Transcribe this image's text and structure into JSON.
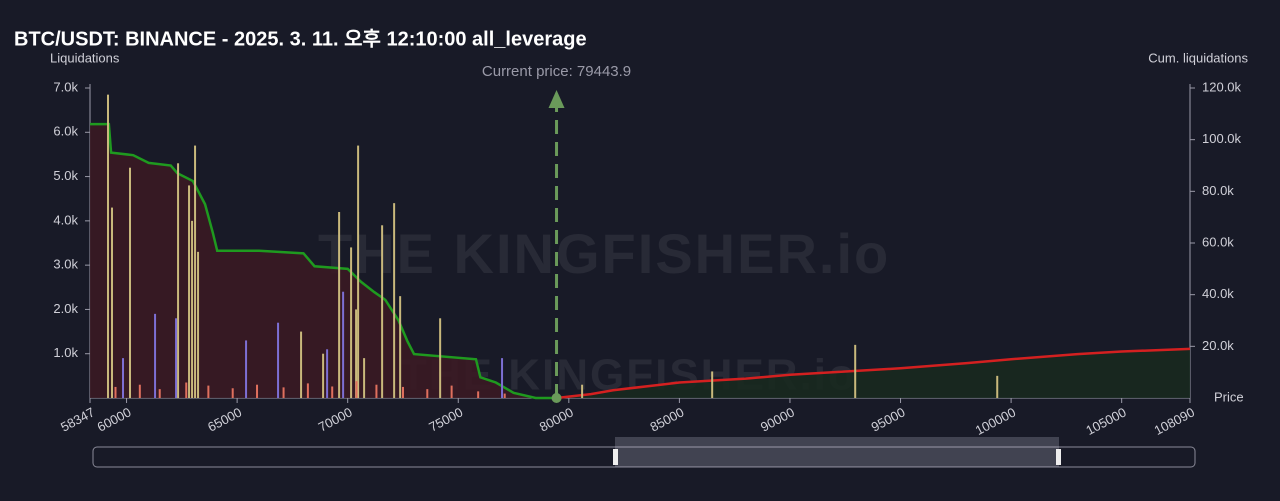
{
  "chart_data": {
    "type": "bar",
    "title": "BTC/USDT: BINANCE - 2025. 3. 11. 오후 12:10:00 all_leverage",
    "y_label": "Liquidations",
    "y2_label": "Cum. liquidations",
    "x_label": "Price",
    "watermark": "THE KINGFISHER.io",
    "annotation": {
      "text": "Current price: 79443.9",
      "x": 79443.9,
      "color": "#6a9a5a"
    },
    "xlim": [
      58347,
      108090
    ],
    "xticks": [
      58347,
      60000,
      65000,
      70000,
      75000,
      80000,
      85000,
      90000,
      95000,
      100000,
      105000,
      108090
    ],
    "ylim": [
      0,
      7000
    ],
    "yticks": [
      {
        "value": 1000,
        "label": "1.0k"
      },
      {
        "value": 2000,
        "label": "2.0k"
      },
      {
        "value": 3000,
        "label": "3.0k"
      },
      {
        "value": 4000,
        "label": "4.0k"
      },
      {
        "value": 5000,
        "label": "5.0k"
      },
      {
        "value": 6000,
        "label": "6.0k"
      },
      {
        "value": 7000,
        "label": "7.0k"
      }
    ],
    "y2lim": [
      0,
      120000
    ],
    "y2ticks": [
      {
        "value": 20000,
        "label": "20.0k"
      },
      {
        "value": 40000,
        "label": "40.0k"
      },
      {
        "value": 60000,
        "label": "60.0k"
      },
      {
        "value": 80000,
        "label": "80.0k"
      },
      {
        "value": 100000,
        "label": "100.0k"
      },
      {
        "value": 120000,
        "label": "120.0k"
      }
    ],
    "grid": false,
    "series": [
      {
        "type": "line",
        "axis": "y2",
        "color": "#1f9a1f",
        "fill": "#3a1a24",
        "x": [
          58347,
          59200,
          59300,
          60300,
          61000,
          62000,
          62300,
          63000,
          63550,
          63900,
          64100,
          66000,
          68000,
          68500,
          70000,
          70600,
          71200,
          71700,
          72300,
          72700,
          73000,
          75800,
          76000,
          76700,
          77500,
          78500,
          79443.9
        ],
        "values": [
          106000,
          106000,
          95000,
          94000,
          91000,
          90000,
          87000,
          84000,
          75000,
          64000,
          57000,
          57000,
          56000,
          51000,
          50000,
          45000,
          41000,
          38000,
          30000,
          22000,
          17000,
          15000,
          8000,
          6000,
          2000,
          0,
          0
        ]
      },
      {
        "type": "line",
        "axis": "y2",
        "color": "#d42020",
        "fill": "#18291f",
        "x": [
          79443.9,
          81000,
          82000,
          84000,
          85000,
          88000,
          90000,
          93000,
          95000,
          98000,
          100000,
          103000,
          105000,
          108090
        ],
        "values": [
          0,
          1500,
          3000,
          5000,
          6000,
          7500,
          9000,
          10500,
          11500,
          13500,
          15000,
          17000,
          18000,
          19000
        ]
      },
      {
        "color": "#c9b97c",
        "x": [
          59161,
          59342,
          60156,
          62329,
          62826,
          62962,
          63098,
          63233,
          67892,
          68888,
          69612,
          70154,
          70380,
          70471,
          70742,
          71557,
          72100,
          72372,
          74181,
          80601,
          86482,
          92950,
          99373
        ],
        "values": [
          6850,
          4300,
          5200,
          5300,
          4800,
          4000,
          5700,
          3300,
          1500,
          1000,
          4200,
          3400,
          2000,
          5700,
          900,
          3900,
          4400,
          2300,
          1800,
          300,
          600,
          1200,
          500
        ]
      },
      {
        "color": "#7d6fd4",
        "x": [
          59840,
          61289,
          62239,
          65404,
          66851,
          69069,
          69793,
          76980
        ],
        "values": [
          900,
          1900,
          1800,
          1300,
          1700,
          1100,
          2400,
          900
        ]
      },
      {
        "color": "#e0705e",
        "x": [
          59500,
          60600,
          61500,
          62700,
          63700,
          64800,
          65900,
          67100,
          68200,
          69300,
          70400,
          71300,
          72500,
          73600,
          74700,
          75900,
          77100
        ],
        "values": [
          250,
          300,
          200,
          350,
          280,
          220,
          300,
          240,
          330,
          260,
          380,
          300,
          250,
          200,
          280,
          150,
          100
        ]
      }
    ]
  }
}
